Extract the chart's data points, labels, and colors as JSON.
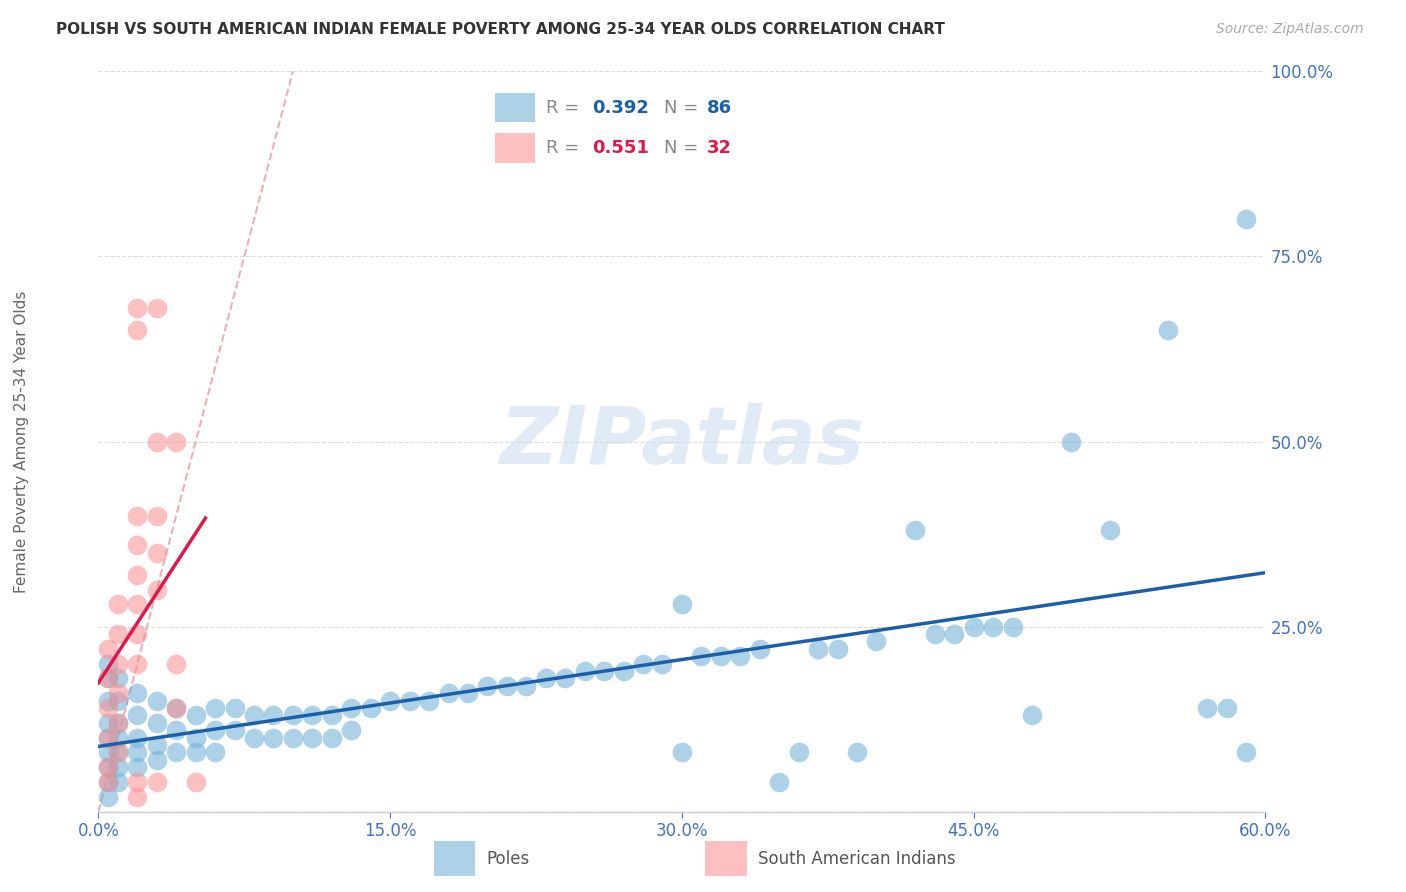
{
  "title": "POLISH VS SOUTH AMERICAN INDIAN FEMALE POVERTY AMONG 25-34 YEAR OLDS CORRELATION CHART",
  "source": "Source: ZipAtlas.com",
  "ylabel": "Female Poverty Among 25-34 Year Olds",
  "xlim": [
    0.0,
    0.6
  ],
  "ylim": [
    0.0,
    1.0
  ],
  "xticks": [
    0.0,
    0.15,
    0.3,
    0.45,
    0.6
  ],
  "yticks": [
    0.0,
    0.25,
    0.5,
    0.75,
    1.0
  ],
  "xtick_labels": [
    "0.0%",
    "15.0%",
    "30.0%",
    "45.0%",
    "60.0%"
  ],
  "ytick_labels": [
    "",
    "25.0%",
    "50.0%",
    "75.0%",
    "100.0%"
  ],
  "blue_color": "#6baed6",
  "pink_color": "#fc8d8d",
  "blue_line_color": "#1a5fa8",
  "pink_line_color": "#e0174a",
  "axis_color": "#4472c4",
  "watermark": "ZIPatlas",
  "blue_points": [
    [
      0.005,
      0.2
    ],
    [
      0.005,
      0.18
    ],
    [
      0.005,
      0.15
    ],
    [
      0.005,
      0.12
    ],
    [
      0.005,
      0.1
    ],
    [
      0.005,
      0.08
    ],
    [
      0.005,
      0.06
    ],
    [
      0.005,
      0.04
    ],
    [
      0.005,
      0.02
    ],
    [
      0.01,
      0.18
    ],
    [
      0.01,
      0.15
    ],
    [
      0.01,
      0.12
    ],
    [
      0.01,
      0.1
    ],
    [
      0.01,
      0.08
    ],
    [
      0.01,
      0.06
    ],
    [
      0.01,
      0.04
    ],
    [
      0.02,
      0.16
    ],
    [
      0.02,
      0.13
    ],
    [
      0.02,
      0.1
    ],
    [
      0.02,
      0.08
    ],
    [
      0.02,
      0.06
    ],
    [
      0.03,
      0.15
    ],
    [
      0.03,
      0.12
    ],
    [
      0.03,
      0.09
    ],
    [
      0.03,
      0.07
    ],
    [
      0.04,
      0.14
    ],
    [
      0.04,
      0.11
    ],
    [
      0.04,
      0.08
    ],
    [
      0.05,
      0.13
    ],
    [
      0.05,
      0.1
    ],
    [
      0.05,
      0.08
    ],
    [
      0.06,
      0.14
    ],
    [
      0.06,
      0.11
    ],
    [
      0.06,
      0.08
    ],
    [
      0.07,
      0.14
    ],
    [
      0.07,
      0.11
    ],
    [
      0.08,
      0.13
    ],
    [
      0.08,
      0.1
    ],
    [
      0.09,
      0.13
    ],
    [
      0.09,
      0.1
    ],
    [
      0.1,
      0.13
    ],
    [
      0.1,
      0.1
    ],
    [
      0.11,
      0.13
    ],
    [
      0.11,
      0.1
    ],
    [
      0.12,
      0.13
    ],
    [
      0.12,
      0.1
    ],
    [
      0.13,
      0.14
    ],
    [
      0.13,
      0.11
    ],
    [
      0.14,
      0.14
    ],
    [
      0.15,
      0.15
    ],
    [
      0.16,
      0.15
    ],
    [
      0.17,
      0.15
    ],
    [
      0.18,
      0.16
    ],
    [
      0.19,
      0.16
    ],
    [
      0.2,
      0.17
    ],
    [
      0.21,
      0.17
    ],
    [
      0.22,
      0.17
    ],
    [
      0.23,
      0.18
    ],
    [
      0.24,
      0.18
    ],
    [
      0.25,
      0.19
    ],
    [
      0.26,
      0.19
    ],
    [
      0.27,
      0.19
    ],
    [
      0.28,
      0.2
    ],
    [
      0.29,
      0.2
    ],
    [
      0.3,
      0.28
    ],
    [
      0.3,
      0.08
    ],
    [
      0.31,
      0.21
    ],
    [
      0.32,
      0.21
    ],
    [
      0.33,
      0.21
    ],
    [
      0.34,
      0.22
    ],
    [
      0.35,
      0.04
    ],
    [
      0.36,
      0.08
    ],
    [
      0.37,
      0.22
    ],
    [
      0.38,
      0.22
    ],
    [
      0.39,
      0.08
    ],
    [
      0.4,
      0.23
    ],
    [
      0.42,
      0.38
    ],
    [
      0.43,
      0.24
    ],
    [
      0.44,
      0.24
    ],
    [
      0.45,
      0.25
    ],
    [
      0.46,
      0.25
    ],
    [
      0.47,
      0.25
    ],
    [
      0.48,
      0.13
    ],
    [
      0.5,
      0.5
    ],
    [
      0.52,
      0.38
    ],
    [
      0.55,
      0.65
    ],
    [
      0.57,
      0.14
    ],
    [
      0.58,
      0.14
    ],
    [
      0.59,
      0.08
    ],
    [
      0.59,
      0.8
    ]
  ],
  "pink_points": [
    [
      0.005,
      0.22
    ],
    [
      0.005,
      0.18
    ],
    [
      0.005,
      0.14
    ],
    [
      0.005,
      0.1
    ],
    [
      0.005,
      0.06
    ],
    [
      0.005,
      0.04
    ],
    [
      0.01,
      0.28
    ],
    [
      0.01,
      0.24
    ],
    [
      0.01,
      0.2
    ],
    [
      0.01,
      0.16
    ],
    [
      0.01,
      0.12
    ],
    [
      0.01,
      0.08
    ],
    [
      0.02,
      0.68
    ],
    [
      0.02,
      0.65
    ],
    [
      0.02,
      0.4
    ],
    [
      0.02,
      0.36
    ],
    [
      0.02,
      0.32
    ],
    [
      0.02,
      0.28
    ],
    [
      0.02,
      0.24
    ],
    [
      0.02,
      0.2
    ],
    [
      0.02,
      0.04
    ],
    [
      0.02,
      0.02
    ],
    [
      0.03,
      0.68
    ],
    [
      0.03,
      0.5
    ],
    [
      0.03,
      0.4
    ],
    [
      0.03,
      0.35
    ],
    [
      0.03,
      0.3
    ],
    [
      0.03,
      0.04
    ],
    [
      0.04,
      0.5
    ],
    [
      0.04,
      0.2
    ],
    [
      0.04,
      0.14
    ],
    [
      0.05,
      0.04
    ]
  ]
}
